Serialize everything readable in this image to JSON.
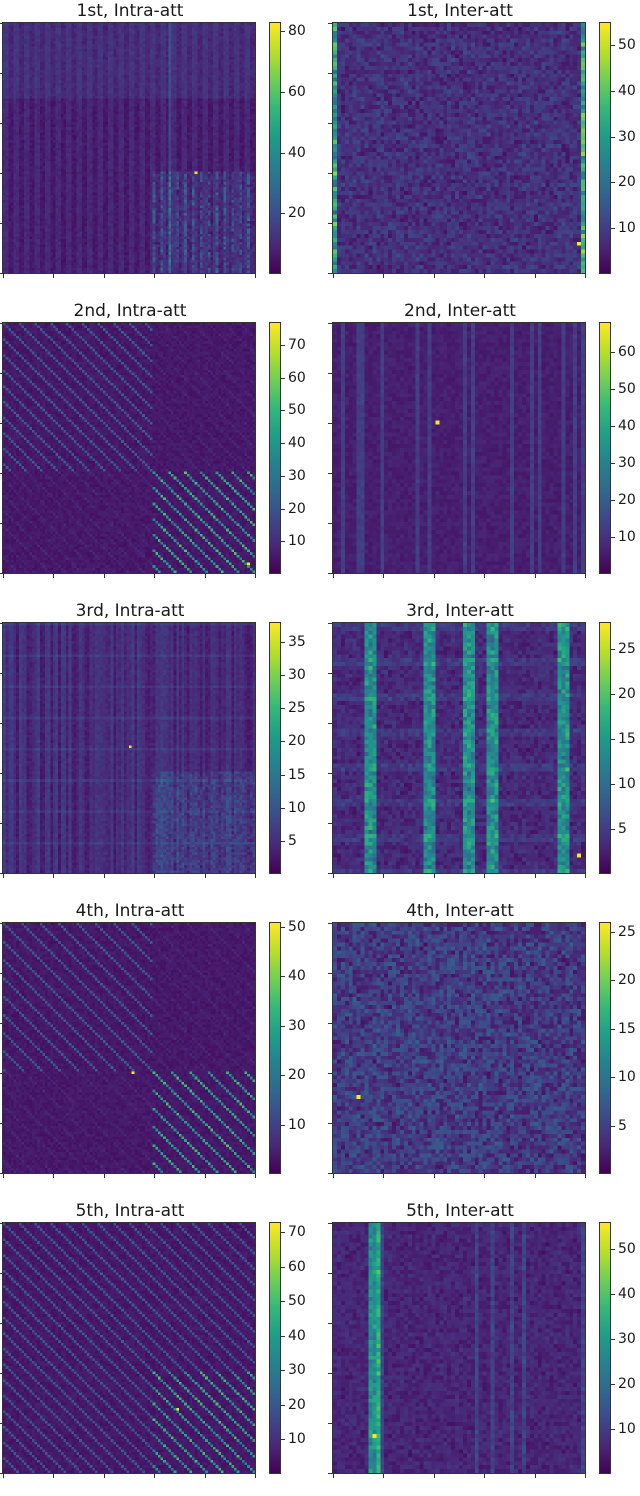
{
  "chart_data": [
    {
      "type": "heatmap",
      "title": "1st, Intra-att",
      "colormap": "viridis",
      "colorbar": {
        "min": 0,
        "max": 83,
        "ticks": [
          20,
          40,
          60,
          80
        ]
      },
      "pattern": "intra-blocks",
      "peak": {
        "x": 0.77,
        "y": 0.6,
        "value": 83
      },
      "block_split": 0.6
    },
    {
      "type": "heatmap",
      "title": "1st, Inter-att",
      "colormap": "viridis",
      "colorbar": {
        "min": 0,
        "max": 55,
        "ticks": [
          10,
          20,
          30,
          40,
          50
        ]
      },
      "pattern": "inter-noise-edges",
      "peak": {
        "x": 0.99,
        "y": 0.9,
        "value": 55
      }
    },
    {
      "type": "heatmap",
      "title": "2nd, Intra-att",
      "colormap": "viridis",
      "colorbar": {
        "min": 0,
        "max": 77,
        "ticks": [
          10,
          20,
          30,
          40,
          50,
          60,
          70
        ]
      },
      "pattern": "intra-diagonals",
      "peak": {
        "x": 0.98,
        "y": 0.97,
        "value": 77
      },
      "block_split": 0.6
    },
    {
      "type": "heatmap",
      "title": "2nd, Inter-att",
      "colormap": "viridis",
      "colorbar": {
        "min": 0,
        "max": 68,
        "ticks": [
          10,
          20,
          30,
          40,
          50,
          60
        ]
      },
      "pattern": "inter-sparse",
      "peak": {
        "x": 0.42,
        "y": 0.41,
        "value": 68
      }
    },
    {
      "type": "heatmap",
      "title": "3rd, Intra-att",
      "colormap": "viridis",
      "colorbar": {
        "min": 0,
        "max": 38,
        "ticks": [
          5,
          10,
          15,
          20,
          25,
          30,
          35
        ]
      },
      "pattern": "intra-vertical",
      "peak": {
        "x": 0.51,
        "y": 0.5,
        "value": 38
      },
      "block_split": 0.6
    },
    {
      "type": "heatmap",
      "title": "3rd, Inter-att",
      "colormap": "viridis",
      "colorbar": {
        "min": 0,
        "max": 28,
        "ticks": [
          5,
          10,
          15,
          20,
          25
        ]
      },
      "pattern": "inter-columns",
      "peak": {
        "x": 0.99,
        "y": 0.94,
        "value": 28
      }
    },
    {
      "type": "heatmap",
      "title": "4th, Intra-att",
      "colormap": "viridis",
      "colorbar": {
        "min": 0,
        "max": 51,
        "ticks": [
          10,
          20,
          30,
          40,
          50
        ]
      },
      "pattern": "intra-diagonals-strong",
      "peak": {
        "x": 0.52,
        "y": 0.6,
        "value": 51
      },
      "block_split": 0.6
    },
    {
      "type": "heatmap",
      "title": "4th, Inter-att",
      "colormap": "viridis",
      "colorbar": {
        "min": 0,
        "max": 26,
        "ticks": [
          5,
          10,
          15,
          20,
          25
        ]
      },
      "pattern": "inter-noise",
      "peak": {
        "x": 0.11,
        "y": 0.7,
        "value": 26
      }
    },
    {
      "type": "heatmap",
      "title": "5th, Intra-att",
      "colormap": "viridis",
      "colorbar": {
        "min": 0,
        "max": 73,
        "ticks": [
          10,
          20,
          30,
          40,
          50,
          60,
          70
        ]
      },
      "pattern": "intra-diagonals-long",
      "peak": {
        "x": 0.7,
        "y": 0.75,
        "value": 73
      },
      "block_split": 0.6
    },
    {
      "type": "heatmap",
      "title": "5th, Inter-att",
      "colormap": "viridis",
      "colorbar": {
        "min": 0,
        "max": 56,
        "ticks": [
          10,
          20,
          30,
          40,
          50
        ]
      },
      "pattern": "inter-columns-sparse",
      "peak": {
        "x": 0.17,
        "y": 0.87,
        "value": 56
      }
    }
  ]
}
